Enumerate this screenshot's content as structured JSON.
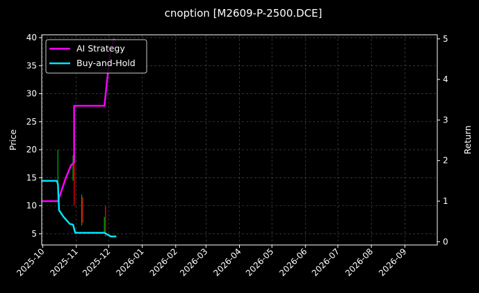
{
  "chart_data": {
    "type": "line",
    "title": "cnoption [M2609-P-2500.DCE]",
    "ylabel_left": "Price",
    "ylabel_right": "Return",
    "ylim_left": [
      3,
      40.5
    ],
    "ylim_right": [
      -0.08,
      5.1
    ],
    "xlim": [
      "2025-09-30",
      "2026-10-01"
    ],
    "left_ticks": [
      5,
      10,
      15,
      20,
      25,
      30,
      35,
      40
    ],
    "right_ticks": [
      0,
      1,
      2,
      3,
      4,
      5
    ],
    "x_tick_labels": [
      "2025-10",
      "2025-11",
      "2025-12",
      "2026-01",
      "2026-02",
      "2026-03",
      "2026-04",
      "2026-05",
      "2026-06",
      "2026-07",
      "2026-08",
      "2026-09"
    ],
    "x_tick_dates": [
      "2025-10-01",
      "2025-11-01",
      "2025-12-01",
      "2026-01-01",
      "2026-02-01",
      "2026-03-01",
      "2026-04-01",
      "2026-05-01",
      "2026-06-01",
      "2026-07-01",
      "2026-08-01",
      "2026-09-01"
    ],
    "grid": true,
    "legend": "top-left",
    "series": [
      {
        "name": "AI Strategy",
        "color": "#ff00ff",
        "axis": "right",
        "points": [
          [
            "2025-09-30",
            1.0
          ],
          [
            "2025-10-15",
            1.0
          ],
          [
            "2025-10-22",
            1.55
          ],
          [
            "2025-10-27",
            1.88
          ],
          [
            "2025-10-30",
            1.95
          ],
          [
            "2025-10-30",
            3.35
          ],
          [
            "2025-11-27",
            3.35
          ],
          [
            "2025-12-02",
            4.6
          ],
          [
            "2025-12-06",
            5.0
          ]
        ]
      },
      {
        "name": "Buy-and-Hold",
        "color": "#00e5ff",
        "axis": "right",
        "points": [
          [
            "2025-09-30",
            1.5
          ],
          [
            "2025-10-14",
            1.5
          ],
          [
            "2025-10-15",
            1.42
          ],
          [
            "2025-10-16",
            0.78
          ],
          [
            "2025-10-20",
            0.62
          ],
          [
            "2025-10-26",
            0.44
          ],
          [
            "2025-10-29",
            0.42
          ],
          [
            "2025-10-31",
            0.22
          ],
          [
            "2025-11-27",
            0.22
          ],
          [
            "2025-12-03",
            0.13
          ],
          [
            "2025-12-08",
            0.13
          ]
        ]
      }
    ],
    "candles": [
      {
        "date": "2025-10-15",
        "high": 20.0,
        "low": 13.5,
        "color": "#00aa00"
      },
      {
        "date": "2025-10-29",
        "high": 19.0,
        "low": 14.5,
        "color": "#00aa00"
      },
      {
        "date": "2025-10-30",
        "high": 20.5,
        "low": 10.0,
        "color": "#ff0000"
      },
      {
        "date": "2025-11-06",
        "high": 12.0,
        "low": 6.5,
        "color": "#00aa00"
      },
      {
        "date": "2025-11-07",
        "high": 11.5,
        "low": 7.0,
        "color": "#ff0000"
      },
      {
        "date": "2025-11-27",
        "high": 8.0,
        "low": 5.0,
        "color": "#00aa00"
      },
      {
        "date": "2025-11-28",
        "high": 10.0,
        "low": 4.5,
        "color": "#ff0000"
      }
    ]
  }
}
